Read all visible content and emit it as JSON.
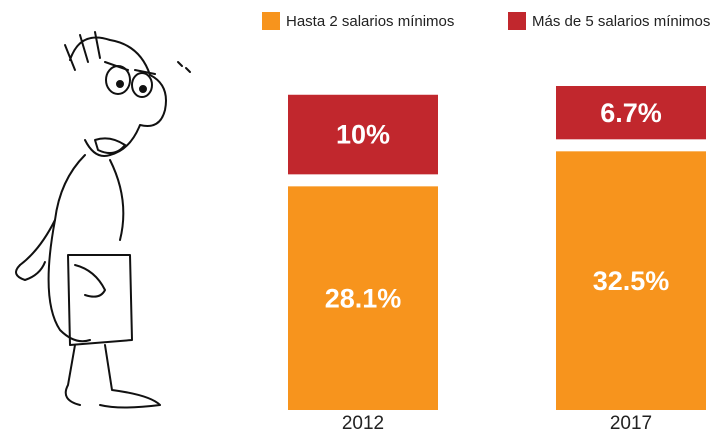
{
  "chart_data": {
    "type": "stacked_bar",
    "categories": [
      "2012",
      "2017"
    ],
    "series": [
      {
        "name": "Hasta 2 salarios mínimos",
        "color": "#f7941d",
        "values": [
          28.1,
          32.5
        ],
        "value_labels": [
          "28.1%",
          "32.5%"
        ]
      },
      {
        "name": "Más de 5 salarios mínimos",
        "color": "#c1272d",
        "values": [
          10,
          6.7
        ],
        "value_labels": [
          "10%",
          "6.7%"
        ]
      }
    ]
  }
}
